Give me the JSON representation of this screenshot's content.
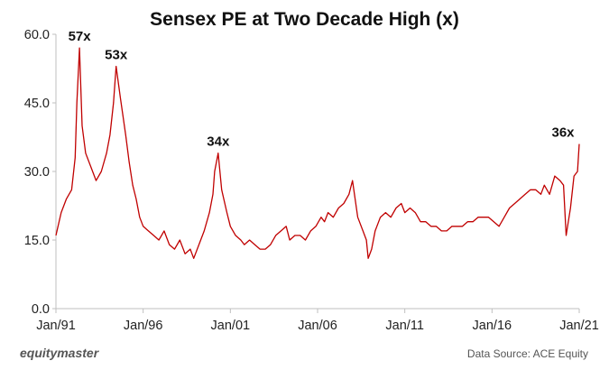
{
  "chart_data": {
    "type": "line",
    "title": "Sensex PE at Two Decade High (x)",
    "xlabel": "",
    "ylabel": "",
    "x_range": [
      "1991-01",
      "2021-01"
    ],
    "ylim": [
      0,
      60
    ],
    "y_ticks": [
      "0.0",
      "15.0",
      "30.0",
      "45.0",
      "60.0"
    ],
    "x_ticks": [
      {
        "label": "Jan/91",
        "year": 1991
      },
      {
        "label": "Jan/96",
        "year": 1996
      },
      {
        "label": "Jan/01",
        "year": 2001
      },
      {
        "label": "Jan/06",
        "year": 2006
      },
      {
        "label": "Jan/11",
        "year": 2011
      },
      {
        "label": "Jan/16",
        "year": 2016
      },
      {
        "label": "Jan/21",
        "year": 2021
      }
    ],
    "grid": false,
    "line_color": "#c00000",
    "series": [
      {
        "x": [
          1991.0,
          1991.3,
          1991.6,
          1991.9,
          1992.1,
          1992.2,
          1992.35,
          1992.5,
          1992.7,
          1993.0,
          1993.3,
          1993.6,
          1993.9,
          1994.1,
          1994.3,
          1994.45,
          1994.7,
          1995.0,
          1995.2,
          1995.4,
          1995.6,
          1995.8,
          1996.0,
          1996.3,
          1996.6,
          1996.9,
          1997.2,
          1997.5,
          1997.8,
          1998.1,
          1998.4,
          1998.7,
          1998.9,
          1999.2,
          1999.5,
          1999.8,
          2000.0,
          2000.1,
          2000.3,
          2000.5,
          2000.8,
          2001.0,
          2001.3,
          2001.6,
          2001.8,
          2002.1,
          2002.4,
          2002.7,
          2003.0,
          2003.3,
          2003.6,
          2003.9,
          2004.2,
          2004.4,
          2004.7,
          2005.0,
          2005.3,
          2005.6,
          2005.9,
          2006.2,
          2006.4,
          2006.6,
          2006.9,
          2007.2,
          2007.5,
          2007.8,
          2008.0,
          2008.3,
          2008.6,
          2008.8,
          2008.9,
          2009.1,
          2009.3,
          2009.6,
          2009.9,
          2010.2,
          2010.5,
          2010.8,
          2011.0,
          2011.3,
          2011.6,
          2011.9,
          2012.2,
          2012.5,
          2012.8,
          2013.1,
          2013.4,
          2013.7,
          2014.0,
          2014.3,
          2014.6,
          2014.9,
          2015.2,
          2015.5,
          2015.8,
          2016.1,
          2016.4,
          2016.7,
          2017.0,
          2017.3,
          2017.6,
          2017.9,
          2018.2,
          2018.5,
          2018.8,
          2019.0,
          2019.3,
          2019.6,
          2019.9,
          2020.1,
          2020.25,
          2020.5,
          2020.7,
          2020.9,
          2021.0
        ],
        "values": [
          16,
          21,
          24,
          26,
          33,
          45,
          57,
          40,
          34,
          31,
          28,
          30,
          34,
          38,
          45,
          53,
          46,
          38,
          32,
          27,
          24,
          20,
          18,
          17,
          16,
          15,
          17,
          14,
          13,
          15,
          12,
          13,
          11,
          14,
          17,
          21,
          25,
          30,
          34,
          26,
          21,
          18,
          16,
          15,
          14,
          15,
          14,
          13,
          13,
          14,
          16,
          17,
          18,
          15,
          16,
          16,
          15,
          17,
          18,
          20,
          19,
          21,
          20,
          22,
          23,
          25,
          28,
          20,
          17,
          15,
          11,
          13,
          17,
          20,
          21,
          20,
          22,
          23,
          21,
          22,
          21,
          19,
          19,
          18,
          18,
          17,
          17,
          18,
          18,
          18,
          19,
          19,
          20,
          20,
          20,
          19,
          18,
          20,
          22,
          23,
          24,
          25,
          26,
          26,
          25,
          27,
          25,
          29,
          28,
          27,
          16,
          22,
          29,
          30,
          36
        ]
      }
    ],
    "annotations": [
      {
        "text": "57x",
        "x": 1992.35,
        "y": 57
      },
      {
        "text": "53x",
        "x": 1994.45,
        "y": 53
      },
      {
        "text": "34x",
        "x": 2000.3,
        "y": 34
      },
      {
        "text": "36x",
        "x": 2021.0,
        "y": 36
      }
    ],
    "footer": {
      "brand": "equitymaster",
      "source": "Data Source: ACE Equity"
    }
  }
}
